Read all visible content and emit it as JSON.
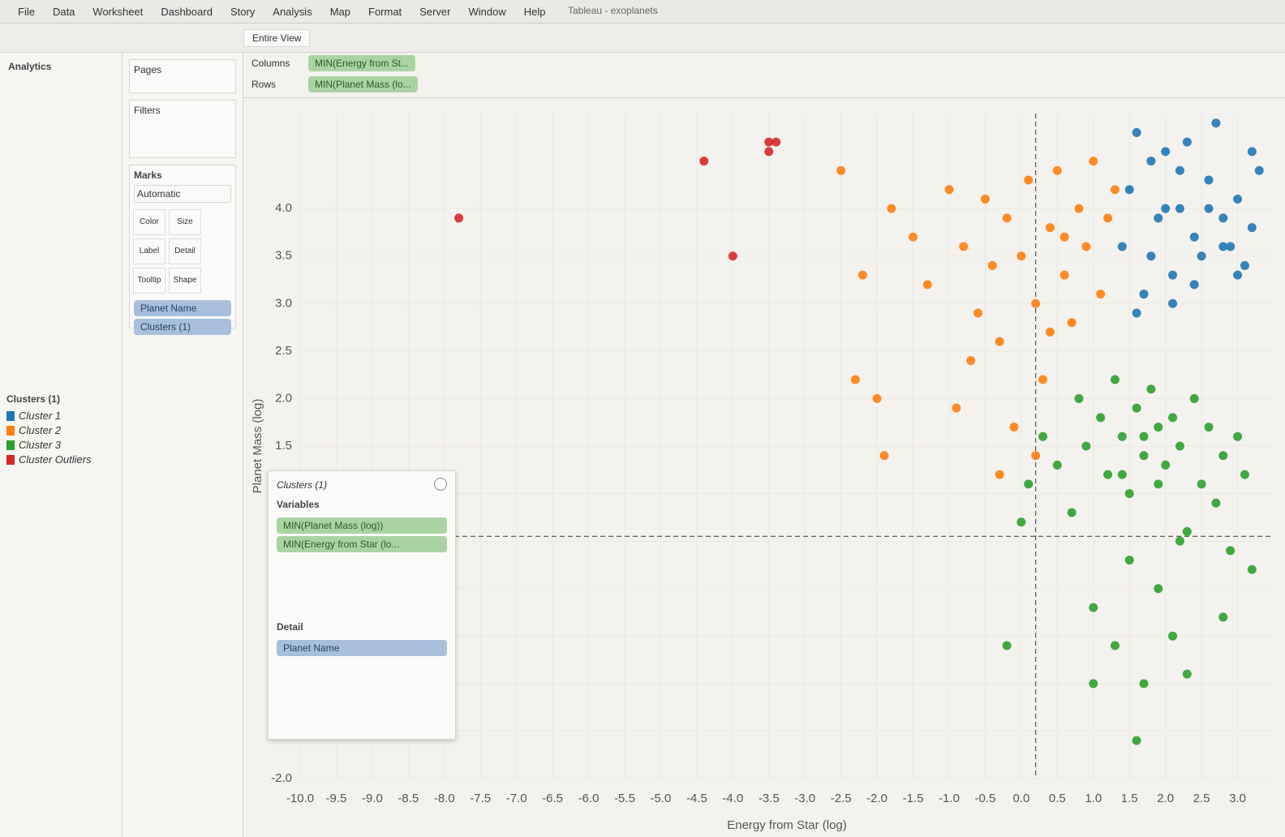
{
  "window_title": "Tableau - exoplanets",
  "menu": [
    "File",
    "Data",
    "Worksheet",
    "Dashboard",
    "Story",
    "Analysis",
    "Map",
    "Format",
    "Server",
    "Window",
    "Help"
  ],
  "toolbar": {
    "view": "Entire View"
  },
  "side_tab": "Analytics",
  "shelves": {
    "pages": "Pages",
    "filters": "Filters",
    "columns": {
      "label": "Columns",
      "pill": "MIN(Energy from St..."
    },
    "rows": {
      "label": "Rows",
      "pill": "MIN(Planet Mass (lo..."
    }
  },
  "marks": {
    "title": "Marks",
    "type": "Automatic",
    "buttons": [
      "Color",
      "Size",
      "Label",
      "Detail",
      "Tooltip",
      "Shape"
    ],
    "pills": [
      "Planet Name",
      "Clusters (1)"
    ]
  },
  "cluster_dialog": {
    "title": "Clusters (1)",
    "variables_heading": "Variables",
    "variables": [
      "MIN(Planet Mass (log))",
      "MIN(Energy from Star (lo..."
    ],
    "detail_heading": "Detail",
    "detail": [
      "Planet Name"
    ]
  },
  "chart_data": {
    "type": "scatter",
    "x_label": "Energy from Star (log)",
    "y_label": "Planet Mass (log)",
    "legend_title": "Clusters (1)",
    "xlim": [
      -10,
      3.5
    ],
    "ylim": [
      -2,
      5
    ],
    "xticks": [
      {
        "value": -10,
        "label": "-10.0"
      },
      -9.5,
      {
        "value": -9,
        "label": "-9.0"
      },
      -8.5,
      {
        "value": -8,
        "label": "-8.0"
      },
      -7.5,
      {
        "value": -7,
        "label": "-7.0"
      },
      -6.5,
      {
        "value": -6,
        "label": "-6.0"
      },
      -5.5,
      {
        "value": -5,
        "label": "-5.0"
      },
      -4.5,
      {
        "value": -4,
        "label": "-4.0"
      },
      -3.5,
      {
        "value": -3,
        "label": "-3.0"
      },
      -2.5,
      {
        "value": -2,
        "label": "-2.0"
      },
      -1.5,
      {
        "value": -1,
        "label": "-1.0"
      },
      -0.5,
      {
        "value": 0,
        "label": "0.0"
      },
      0.5,
      {
        "value": 1,
        "label": "1.0"
      },
      1.5,
      {
        "value": 2,
        "label": "2.0"
      },
      2.5,
      {
        "value": 3,
        "label": "3.0"
      }
    ],
    "yticks": [
      {
        "value": -2,
        "label": "-2.0"
      },
      -1.5,
      {
        "value": -1,
        "label": "-1.0"
      },
      -0.5,
      {
        "value": 0,
        "label": "0.0"
      },
      0.5,
      {
        "value": 1,
        "label": "1.0"
      },
      1.5,
      {
        "value": 2,
        "label": "2.0"
      },
      2.5,
      {
        "value": 3,
        "label": "3.0"
      },
      3.5,
      {
        "value": 4,
        "label": "4.0"
      }
    ],
    "reference_lines": {
      "x": 0.2,
      "y": 0.55
    },
    "series": [
      {
        "name": "Cluster 1",
        "color": "#1f77b4",
        "x": [
          1.4,
          1.5,
          1.6,
          1.7,
          1.8,
          1.9,
          2.0,
          2.1,
          2.2,
          2.3,
          2.4,
          2.5,
          2.6,
          2.7,
          2.8,
          2.9,
          3.0,
          3.1,
          3.2,
          3.3,
          1.6,
          1.8,
          2.0,
          2.2,
          2.4,
          2.6,
          2.8,
          3.0,
          3.2,
          2.1
        ],
        "values": [
          3.6,
          4.2,
          4.8,
          3.1,
          4.5,
          3.9,
          4.6,
          3.3,
          4.0,
          4.7,
          3.7,
          3.5,
          4.3,
          4.9,
          3.9,
          3.6,
          4.1,
          3.4,
          3.8,
          4.4,
          2.9,
          3.5,
          4.0,
          4.4,
          3.2,
          4.0,
          3.6,
          3.3,
          4.6,
          3.0
        ]
      },
      {
        "name": "Cluster 2",
        "color": "#ff7f0e",
        "x": [
          -2.5,
          -2.2,
          -2.0,
          -1.8,
          -1.5,
          -1.3,
          -1.0,
          -0.8,
          -0.6,
          -0.5,
          -0.4,
          -0.3,
          -0.2,
          -0.1,
          0.0,
          0.1,
          0.2,
          0.3,
          0.4,
          0.5,
          0.6,
          0.7,
          0.8,
          0.9,
          1.0,
          1.1,
          1.2,
          1.3,
          -0.7,
          -0.9,
          0.2,
          0.4,
          -1.9,
          -2.3,
          -0.3,
          0.6
        ],
        "values": [
          4.4,
          3.3,
          2.0,
          4.0,
          3.7,
          3.2,
          4.2,
          3.6,
          2.9,
          4.1,
          3.4,
          2.6,
          3.9,
          1.7,
          3.5,
          4.3,
          3.0,
          2.2,
          3.8,
          4.4,
          3.3,
          2.8,
          4.0,
          3.6,
          4.5,
          3.1,
          3.9,
          4.2,
          2.4,
          1.9,
          1.4,
          2.7,
          1.4,
          2.2,
          1.2,
          3.7
        ]
      },
      {
        "name": "Cluster 3",
        "color": "#2ca02c",
        "x": [
          0.0,
          0.1,
          0.3,
          0.5,
          0.7,
          0.8,
          0.9,
          1.0,
          1.1,
          1.2,
          1.3,
          1.4,
          1.5,
          1.6,
          1.7,
          1.8,
          1.9,
          2.0,
          2.1,
          2.2,
          2.3,
          2.4,
          2.5,
          2.6,
          2.7,
          2.8,
          2.9,
          3.0,
          3.1,
          3.2,
          1.3,
          1.5,
          1.7,
          1.9,
          2.1,
          2.3,
          1.0,
          1.6,
          2.2,
          2.8,
          1.4,
          1.9,
          -0.2,
          1.7
        ],
        "values": [
          0.7,
          1.1,
          1.6,
          1.3,
          0.8,
          2.0,
          1.5,
          -0.2,
          1.8,
          1.2,
          2.2,
          1.6,
          1.0,
          1.9,
          1.4,
          2.1,
          1.7,
          1.3,
          1.8,
          1.5,
          0.6,
          2.0,
          1.1,
          1.7,
          0.9,
          1.4,
          0.4,
          1.6,
          1.2,
          0.2,
          -0.6,
          0.3,
          -1.0,
          0.0,
          -0.5,
          -0.9,
          -1.0,
          -1.6,
          0.5,
          -0.3,
          1.2,
          1.1,
          -0.6,
          1.6
        ]
      },
      {
        "name": "Cluster Outliers",
        "color": "#d62728",
        "x": [
          -7.8,
          -4.4,
          -3.5,
          -3.4,
          -3.5,
          -4.0
        ],
        "values": [
          3.9,
          4.5,
          4.7,
          4.7,
          4.6,
          3.5
        ]
      }
    ]
  }
}
